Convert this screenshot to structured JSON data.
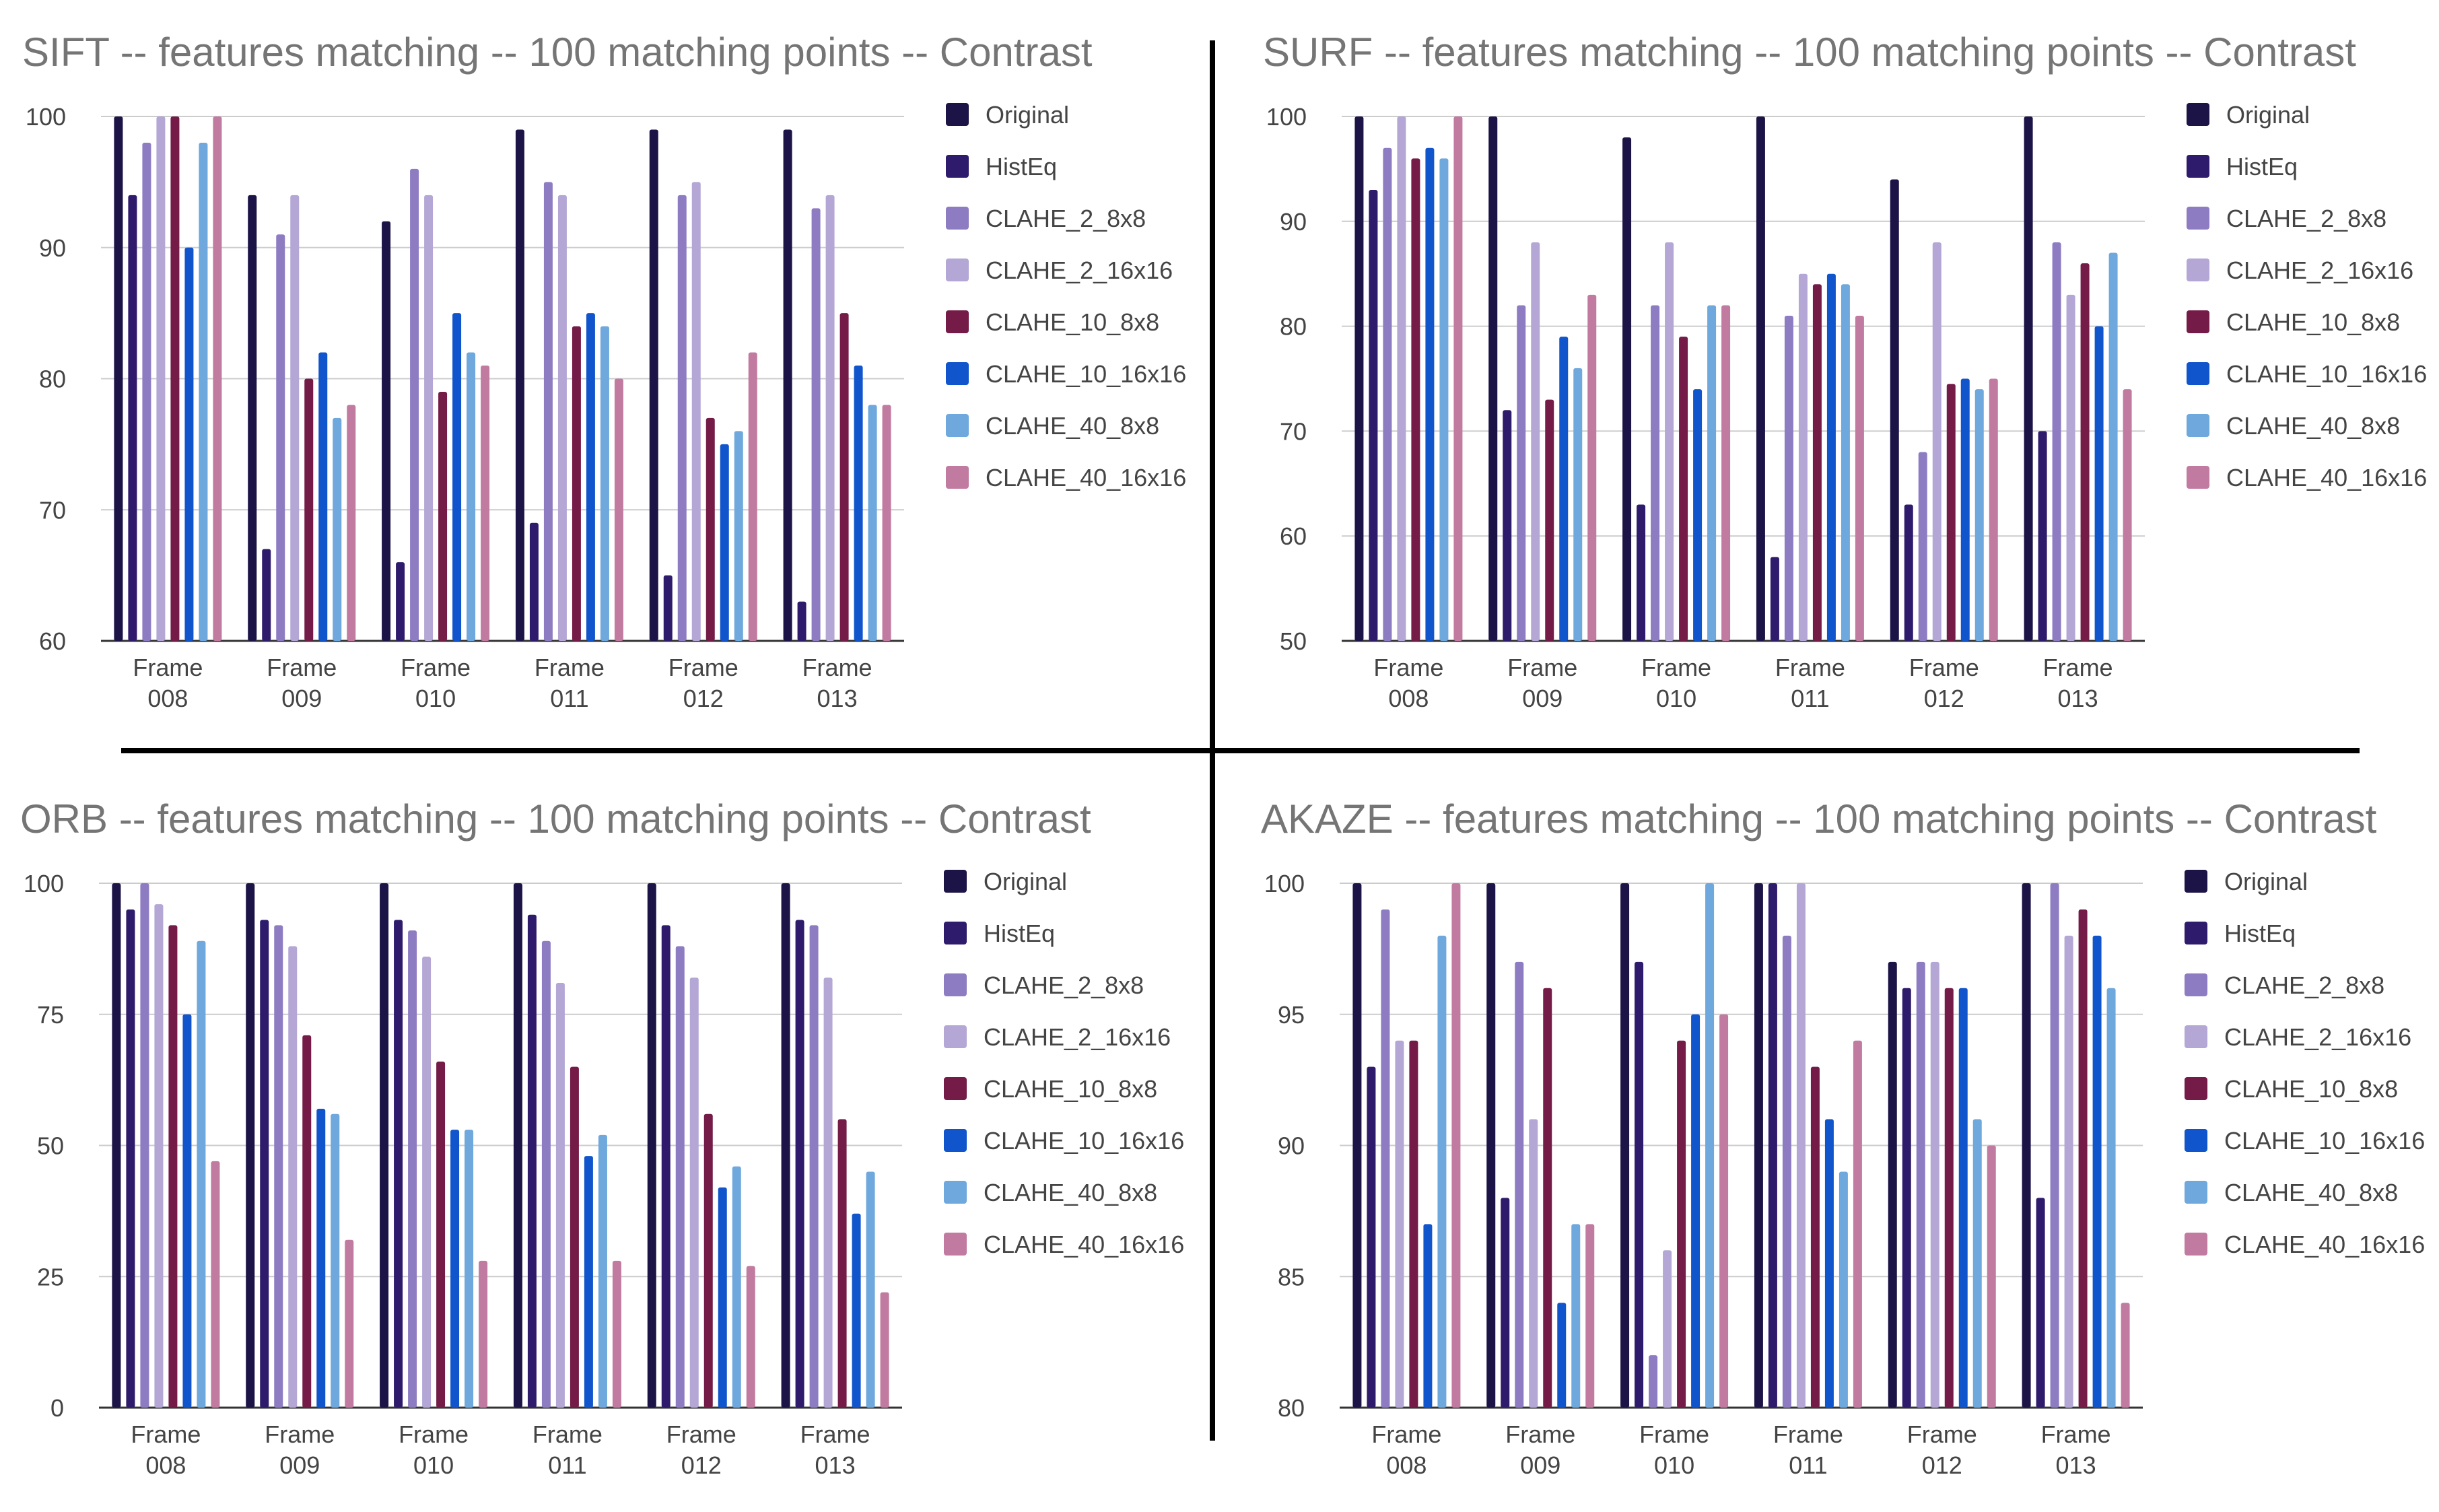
{
  "series_names": [
    "Original",
    "HistEq",
    "CLAHE_2_8x8",
    "CLAHE_2_16x16",
    "CLAHE_10_8x8",
    "CLAHE_10_16x16",
    "CLAHE_40_8x8",
    "CLAHE_40_16x16"
  ],
  "series_colors": [
    "#1c1446",
    "#2f1b6b",
    "#8e7cc3",
    "#b4a7d6",
    "#741b47",
    "#1155cc",
    "#6fa8dc",
    "#c27ba0"
  ],
  "chart_data": [
    {
      "type": "bar",
      "title": "SIFT -- features matching  -- 100 matching points  --  Contrast",
      "categories": [
        [
          "Frame",
          "008"
        ],
        [
          "Frame",
          "009"
        ],
        [
          "Frame",
          "010"
        ],
        [
          "Frame",
          "011"
        ],
        [
          "Frame",
          "012"
        ],
        [
          "Frame",
          "013"
        ]
      ],
      "ylim": [
        60,
        100
      ],
      "yticks": [
        60,
        70,
        80,
        90,
        100
      ],
      "legend": "right",
      "series": [
        {
          "name": "Original",
          "values": [
            100,
            94,
            92,
            99,
            99,
            99
          ]
        },
        {
          "name": "HistEq",
          "values": [
            94,
            67,
            66,
            69,
            65,
            63
          ]
        },
        {
          "name": "CLAHE_2_8x8",
          "values": [
            98,
            91,
            96,
            95,
            94,
            93
          ]
        },
        {
          "name": "CLAHE_2_16x16",
          "values": [
            100,
            94,
            94,
            94,
            95,
            94
          ]
        },
        {
          "name": "CLAHE_10_8x8",
          "values": [
            100,
            80,
            79,
            84,
            77,
            85
          ]
        },
        {
          "name": "CLAHE_10_16x16",
          "values": [
            90,
            82,
            85,
            85,
            75,
            81
          ]
        },
        {
          "name": "CLAHE_40_8x8",
          "values": [
            98,
            77,
            82,
            84,
            76,
            78
          ]
        },
        {
          "name": "CLAHE_40_16x16",
          "values": [
            100,
            78,
            81,
            80,
            82,
            78
          ]
        }
      ]
    },
    {
      "type": "bar",
      "title": "SURF -- features matching  -- 100 matching points  --  Contrast",
      "categories": [
        [
          "Frame",
          "008"
        ],
        [
          "Frame",
          "009"
        ],
        [
          "Frame",
          "010"
        ],
        [
          "Frame",
          "011"
        ],
        [
          "Frame",
          "012"
        ],
        [
          "Frame",
          "013"
        ]
      ],
      "ylim": [
        50,
        100
      ],
      "yticks": [
        50,
        60,
        70,
        80,
        90,
        100
      ],
      "legend": "right",
      "series": [
        {
          "name": "Original",
          "values": [
            100,
            100,
            98,
            100,
            94,
            100
          ]
        },
        {
          "name": "HistEq",
          "values": [
            93,
            72,
            63,
            58,
            63,
            70
          ]
        },
        {
          "name": "CLAHE_2_8x8",
          "values": [
            97,
            82,
            82,
            81,
            68,
            88
          ]
        },
        {
          "name": "CLAHE_2_16x16",
          "values": [
            100,
            88,
            88,
            85,
            88,
            83
          ]
        },
        {
          "name": "CLAHE_10_8x8",
          "values": [
            96,
            73,
            79,
            84,
            74.5,
            86
          ]
        },
        {
          "name": "CLAHE_10_16x16",
          "values": [
            97,
            79,
            74,
            85,
            75,
            80
          ]
        },
        {
          "name": "CLAHE_40_8x8",
          "values": [
            96,
            76,
            82,
            84,
            74,
            87
          ]
        },
        {
          "name": "CLAHE_40_16x16",
          "values": [
            100,
            83,
            82,
            81,
            75,
            74
          ]
        }
      ]
    },
    {
      "type": "bar",
      "title": "ORB -- features matching  -- 100 matching points  -- Contrast",
      "categories": [
        [
          "Frame",
          "008"
        ],
        [
          "Frame",
          "009"
        ],
        [
          "Frame",
          "010"
        ],
        [
          "Frame",
          "011"
        ],
        [
          "Frame",
          "012"
        ],
        [
          "Frame",
          "013"
        ]
      ],
      "ylim": [
        0,
        100
      ],
      "yticks": [
        0,
        25,
        50,
        75,
        100
      ],
      "legend": "right",
      "series": [
        {
          "name": "Original",
          "values": [
            100,
            100,
            100,
            100,
            100,
            100
          ]
        },
        {
          "name": "HistEq",
          "values": [
            95,
            93,
            93,
            94,
            92,
            93
          ]
        },
        {
          "name": "CLAHE_2_8x8",
          "values": [
            100,
            92,
            91,
            89,
            88,
            92
          ]
        },
        {
          "name": "CLAHE_2_16x16",
          "values": [
            96,
            88,
            86,
            81,
            82,
            82
          ]
        },
        {
          "name": "CLAHE_10_8x8",
          "values": [
            92,
            71,
            66,
            65,
            56,
            55
          ]
        },
        {
          "name": "CLAHE_10_16x16",
          "values": [
            75,
            57,
            53,
            48,
            42,
            37
          ]
        },
        {
          "name": "CLAHE_40_8x8",
          "values": [
            89,
            56,
            53,
            52,
            46,
            45
          ]
        },
        {
          "name": "CLAHE_40_16x16",
          "values": [
            47,
            32,
            28,
            28,
            27,
            22
          ]
        }
      ]
    },
    {
      "type": "bar",
      "title": "AKAZE -- features matching  -- 100 matching points  -- Contrast",
      "categories": [
        [
          "Frame",
          "008"
        ],
        [
          "Frame",
          "009"
        ],
        [
          "Frame",
          "010"
        ],
        [
          "Frame",
          "011"
        ],
        [
          "Frame",
          "012"
        ],
        [
          "Frame",
          "013"
        ]
      ],
      "ylim": [
        80,
        100
      ],
      "yticks": [
        80,
        85,
        90,
        95,
        100
      ],
      "legend": "right",
      "series": [
        {
          "name": "Original",
          "values": [
            100,
            100,
            100,
            100,
            97,
            100
          ]
        },
        {
          "name": "HistEq",
          "values": [
            93,
            88,
            97,
            100,
            96,
            88
          ]
        },
        {
          "name": "CLAHE_2_8x8",
          "values": [
            99,
            97,
            82,
            98,
            97,
            100
          ]
        },
        {
          "name": "CLAHE_2_16x16",
          "values": [
            94,
            91,
            86,
            100,
            97,
            98
          ]
        },
        {
          "name": "CLAHE_10_8x8",
          "values": [
            94,
            96,
            94,
            93,
            96,
            99
          ]
        },
        {
          "name": "CLAHE_10_16x16",
          "values": [
            87,
            84,
            95,
            91,
            96,
            98
          ]
        },
        {
          "name": "CLAHE_40_8x8",
          "values": [
            98,
            87,
            100,
            89,
            91,
            96
          ]
        },
        {
          "name": "CLAHE_40_16x16",
          "values": [
            100,
            87,
            95,
            94,
            90,
            84
          ]
        }
      ]
    }
  ]
}
